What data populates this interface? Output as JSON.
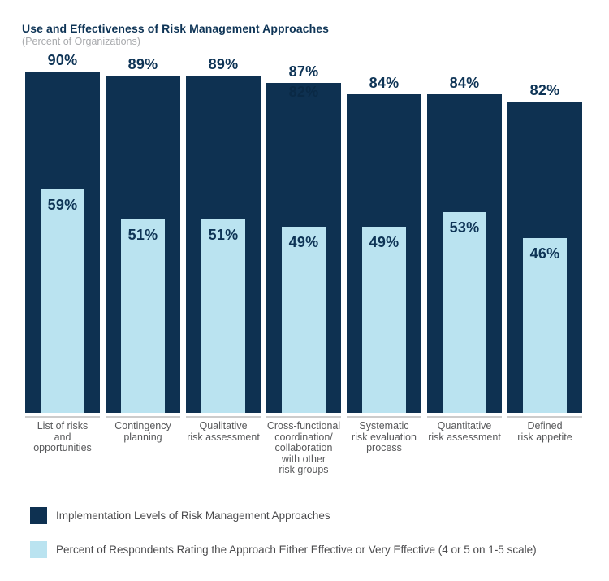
{
  "title": "Use and Effectiveness of Risk Management Approaches",
  "subtitle": "(Percent of Organizations)",
  "colors": {
    "navy": "#0e3151",
    "light_blue": "#bae3f0",
    "label_navy": "#0e3456",
    "category_gray": "#58595b",
    "subtitle_gray": "#a8aaad",
    "axis_line_gray": "#cccccc"
  },
  "chart_data": {
    "type": "bar",
    "title": "Use and Effectiveness of Risk Management Approaches",
    "subtitle": "(Percent of Organizations)",
    "categories": [
      "List of risks and opportunities",
      "Contingency planning",
      "Qualitative risk assessment",
      "Cross-functional coordination/ collaboration with other risk groups",
      "Systematic risk evaluation process",
      "Quantitative risk assessment",
      "Defined risk appetite"
    ],
    "categories_lines": [
      [
        "List of risks",
        "and",
        "opportunities"
      ],
      [
        "Contingency",
        "planning"
      ],
      [
        "Qualitative",
        "risk assessment"
      ],
      [
        "Cross-functional",
        "coordination/",
        "collaboration",
        "with other",
        "risk groups"
      ],
      [
        "Systematic",
        "risk evaluation",
        "process"
      ],
      [
        "Quantitative",
        "risk assessment"
      ],
      [
        "Defined",
        "risk appetite"
      ]
    ],
    "series": [
      {
        "name": "Implementation Levels of Risk Management Approaches",
        "color": "#0e3151",
        "values": [
          90,
          89,
          89,
          87,
          84,
          84,
          82
        ]
      },
      {
        "name": "Percent of Respondents Rating the Approach Either Effective or Very Effective (4 or 5 on 1-5 scale)",
        "color": "#bae3f0",
        "values": [
          59,
          51,
          51,
          49,
          49,
          53,
          46
        ]
      }
    ],
    "value_suffix": "%",
    "ylim": [
      0,
      90
    ],
    "grid": false,
    "legend_position": "bottom",
    "annotations": [
      {
        "bar_index": 3,
        "text": "82%",
        "note": "faint ghost label inside top of fourth bar"
      }
    ]
  },
  "legend": {
    "items": [
      {
        "label": "Implementation Levels of Risk Management Approaches",
        "color": "#0e3151"
      },
      {
        "label": "Percent of Respondents Rating the Approach Either Effective or Very Effective (4 or 5 on 1-5 scale)",
        "color": "#bae3f0"
      }
    ]
  }
}
